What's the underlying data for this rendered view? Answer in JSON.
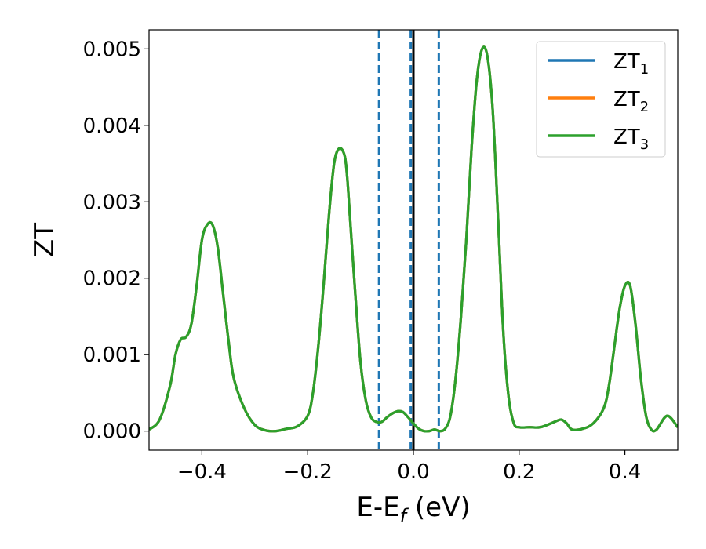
{
  "chart_data": {
    "type": "line",
    "xlabel": {
      "main": "E-E",
      "sub": "f",
      "suffix": " (eV)"
    },
    "ylabel": "ZT",
    "xlim": [
      -0.5,
      0.5
    ],
    "ylim": [
      -0.00025,
      0.00525
    ],
    "xticks": [
      -0.4,
      -0.2,
      0.0,
      0.2,
      0.4
    ],
    "xtick_labels": [
      "−0.4",
      "−0.2",
      "0.0",
      "0.2",
      "0.4"
    ],
    "yticks": [
      0,
      0.001,
      0.002,
      0.003,
      0.004,
      0.005
    ],
    "ytick_labels": [
      "0.000",
      "0.001",
      "0.002",
      "0.003",
      "0.004",
      "0.005"
    ],
    "grid": false,
    "legend_position": "top-right",
    "series": [
      {
        "name": {
          "main": "ZT",
          "sub": "1"
        },
        "color": "#1f77b4",
        "x": [
          -0.5,
          -0.48,
          -0.46,
          -0.45,
          -0.44,
          -0.43,
          -0.42,
          -0.41,
          -0.4,
          -0.39,
          -0.38,
          -0.37,
          -0.36,
          -0.35,
          -0.34,
          -0.32,
          -0.3,
          -0.28,
          -0.26,
          -0.24,
          -0.22,
          -0.2,
          -0.19,
          -0.18,
          -0.17,
          -0.16,
          -0.15,
          -0.14,
          -0.13,
          -0.125,
          -0.12,
          -0.11,
          -0.1,
          -0.09,
          -0.08,
          -0.07,
          -0.06,
          -0.05,
          -0.04,
          -0.03,
          -0.02,
          -0.01,
          0,
          0.01,
          0.02,
          0.03,
          0.04,
          0.05,
          0.06,
          0.07,
          0.08,
          0.09,
          0.1,
          0.11,
          0.12,
          0.13,
          0.14,
          0.15,
          0.16,
          0.17,
          0.18,
          0.19,
          0.2,
          0.22,
          0.24,
          0.26,
          0.27,
          0.28,
          0.29,
          0.3,
          0.32,
          0.34,
          0.36,
          0.37,
          0.38,
          0.39,
          0.4,
          0.41,
          0.42,
          0.43,
          0.44,
          0.45,
          0.46,
          0.48,
          0.5
        ],
        "y": [
          2e-05,
          0.00015,
          0.0006,
          0.001,
          0.0012,
          0.00123,
          0.0014,
          0.0019,
          0.0025,
          0.0027,
          0.0027,
          0.0024,
          0.0018,
          0.0012,
          0.0007,
          0.0003,
          8e-05,
          1e-05,
          0.0,
          3e-05,
          6e-05,
          0.0002,
          0.0005,
          0.0011,
          0.0019,
          0.0028,
          0.0035,
          0.0037,
          0.0036,
          0.0033,
          0.0028,
          0.0018,
          0.0009,
          0.0004,
          0.00018,
          0.00012,
          0.00012,
          0.00018,
          0.00023,
          0.00026,
          0.00025,
          0.00018,
          0.0001,
          3e-05,
          0.0,
          0.0,
          2e-05,
          0.0,
          3e-05,
          0.0002,
          0.0007,
          0.0015,
          0.0025,
          0.0037,
          0.0046,
          0.005,
          0.0049,
          0.0042,
          0.0028,
          0.0013,
          0.00045,
          0.0001,
          5e-05,
          5e-05,
          5e-05,
          0.0001,
          0.00013,
          0.00015,
          0.0001,
          2e-05,
          3e-05,
          0.0001,
          0.0003,
          0.0006,
          0.0011,
          0.0016,
          0.0019,
          0.0019,
          0.0014,
          0.0007,
          0.0002,
          2e-05,
          2e-05,
          0.0002,
          5e-05
        ]
      },
      {
        "name": {
          "main": "ZT",
          "sub": "2"
        },
        "color": "#ff7f0e",
        "x": [
          -0.5,
          -0.48,
          -0.46,
          -0.45,
          -0.44,
          -0.43,
          -0.42,
          -0.41,
          -0.4,
          -0.39,
          -0.38,
          -0.37,
          -0.36,
          -0.35,
          -0.34,
          -0.32,
          -0.3,
          -0.28,
          -0.26,
          -0.24,
          -0.22,
          -0.2,
          -0.19,
          -0.18,
          -0.17,
          -0.16,
          -0.15,
          -0.14,
          -0.13,
          -0.125,
          -0.12,
          -0.11,
          -0.1,
          -0.09,
          -0.08,
          -0.07,
          -0.06,
          -0.05,
          -0.04,
          -0.03,
          -0.02,
          -0.01,
          0,
          0.01,
          0.02,
          0.03,
          0.04,
          0.05,
          0.06,
          0.07,
          0.08,
          0.09,
          0.1,
          0.11,
          0.12,
          0.13,
          0.14,
          0.15,
          0.16,
          0.17,
          0.18,
          0.19,
          0.2,
          0.22,
          0.24,
          0.26,
          0.27,
          0.28,
          0.29,
          0.3,
          0.32,
          0.34,
          0.36,
          0.37,
          0.38,
          0.39,
          0.4,
          0.41,
          0.42,
          0.43,
          0.44,
          0.45,
          0.46,
          0.48,
          0.5
        ],
        "y": [
          2e-05,
          0.00015,
          0.0006,
          0.001,
          0.0012,
          0.00123,
          0.0014,
          0.0019,
          0.0025,
          0.0027,
          0.0027,
          0.0024,
          0.0018,
          0.0012,
          0.0007,
          0.0003,
          8e-05,
          1e-05,
          0.0,
          3e-05,
          6e-05,
          0.0002,
          0.0005,
          0.0011,
          0.0019,
          0.0028,
          0.0035,
          0.0037,
          0.0036,
          0.0033,
          0.0028,
          0.0018,
          0.0009,
          0.0004,
          0.00018,
          0.00012,
          0.00012,
          0.00018,
          0.00023,
          0.00026,
          0.00025,
          0.00018,
          0.0001,
          3e-05,
          0.0,
          0.0,
          2e-05,
          0.0,
          3e-05,
          0.0002,
          0.0007,
          0.0015,
          0.0025,
          0.0037,
          0.0046,
          0.005,
          0.0049,
          0.0042,
          0.0028,
          0.0013,
          0.00045,
          0.0001,
          5e-05,
          5e-05,
          5e-05,
          0.0001,
          0.00013,
          0.00015,
          0.0001,
          2e-05,
          3e-05,
          0.0001,
          0.0003,
          0.0006,
          0.0011,
          0.0016,
          0.0019,
          0.0019,
          0.0014,
          0.0007,
          0.0002,
          2e-05,
          2e-05,
          0.0002,
          5e-05
        ]
      },
      {
        "name": {
          "main": "ZT",
          "sub": "3"
        },
        "color": "#2ca02c",
        "x": [
          -0.5,
          -0.48,
          -0.46,
          -0.45,
          -0.44,
          -0.43,
          -0.42,
          -0.41,
          -0.4,
          -0.39,
          -0.38,
          -0.37,
          -0.36,
          -0.35,
          -0.34,
          -0.32,
          -0.3,
          -0.28,
          -0.26,
          -0.24,
          -0.22,
          -0.2,
          -0.19,
          -0.18,
          -0.17,
          -0.16,
          -0.15,
          -0.14,
          -0.13,
          -0.125,
          -0.12,
          -0.11,
          -0.1,
          -0.09,
          -0.08,
          -0.07,
          -0.06,
          -0.05,
          -0.04,
          -0.03,
          -0.02,
          -0.01,
          0,
          0.01,
          0.02,
          0.03,
          0.04,
          0.05,
          0.06,
          0.07,
          0.08,
          0.09,
          0.1,
          0.11,
          0.12,
          0.13,
          0.14,
          0.15,
          0.16,
          0.17,
          0.18,
          0.19,
          0.2,
          0.22,
          0.24,
          0.26,
          0.27,
          0.28,
          0.29,
          0.3,
          0.32,
          0.34,
          0.36,
          0.37,
          0.38,
          0.39,
          0.4,
          0.41,
          0.42,
          0.43,
          0.44,
          0.45,
          0.46,
          0.48,
          0.5
        ],
        "y": [
          2e-05,
          0.00015,
          0.0006,
          0.001,
          0.0012,
          0.00123,
          0.0014,
          0.0019,
          0.0025,
          0.0027,
          0.0027,
          0.0024,
          0.0018,
          0.0012,
          0.0007,
          0.0003,
          8e-05,
          1e-05,
          0.0,
          3e-05,
          6e-05,
          0.0002,
          0.0005,
          0.0011,
          0.0019,
          0.0028,
          0.0035,
          0.0037,
          0.0036,
          0.0033,
          0.0028,
          0.0018,
          0.0009,
          0.0004,
          0.00018,
          0.00012,
          0.00012,
          0.00018,
          0.00023,
          0.00026,
          0.00025,
          0.00018,
          0.0001,
          3e-05,
          0.0,
          0.0,
          2e-05,
          0.0,
          3e-05,
          0.0002,
          0.0007,
          0.0015,
          0.0025,
          0.0037,
          0.0046,
          0.005,
          0.0049,
          0.0042,
          0.0028,
          0.0013,
          0.00045,
          0.0001,
          5e-05,
          5e-05,
          5e-05,
          0.0001,
          0.00013,
          0.00015,
          0.0001,
          2e-05,
          3e-05,
          0.0001,
          0.0003,
          0.0006,
          0.0011,
          0.0016,
          0.0019,
          0.0019,
          0.0014,
          0.0007,
          0.0002,
          2e-05,
          2e-05,
          0.0002,
          5e-05
        ]
      }
    ],
    "reference_lines": [
      {
        "x": -0.065,
        "style": "dashed",
        "color": "#1f77b4"
      },
      {
        "x": -0.005,
        "style": "dashed",
        "color": "#1f77b4"
      },
      {
        "x": 0.048,
        "style": "dashed",
        "color": "#1f77b4"
      },
      {
        "x": 0.0,
        "style": "solid",
        "color": "#000000"
      }
    ]
  }
}
